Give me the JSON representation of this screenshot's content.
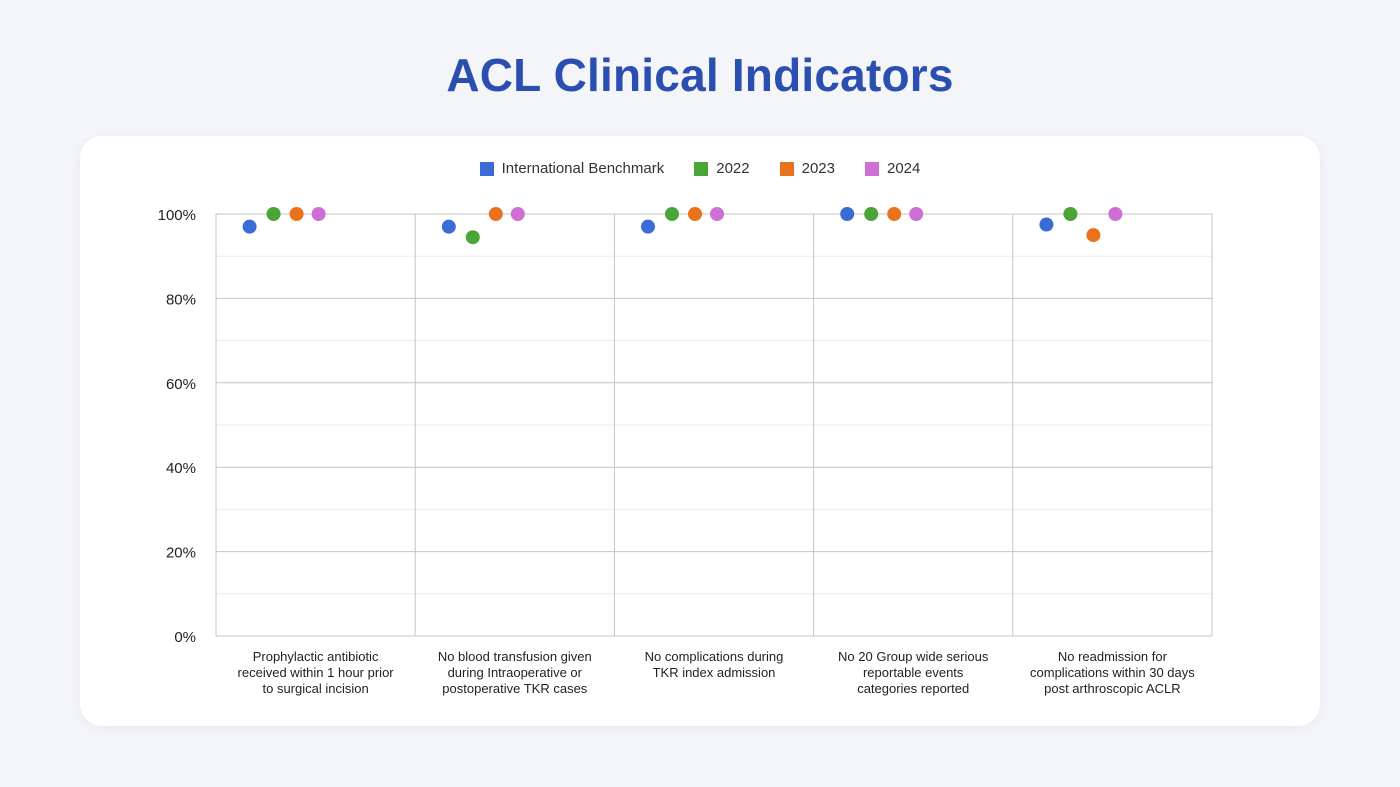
{
  "title": "ACL Clinical Indicators",
  "chart_data": {
    "type": "scatter",
    "title": "ACL Clinical Indicators",
    "xlabel": "",
    "ylabel": "",
    "ylim": [
      0,
      100
    ],
    "yticks": [
      "0%",
      "20%",
      "40%",
      "60%",
      "80%",
      "100%"
    ],
    "categories": [
      "Prophylactic antibiotic received within 1 hour prior to surgical incision",
      "No blood transfusion given during Intraoperative or postoperative TKR cases",
      "No complications during TKR index admission",
      "No 20 Group wide serious reportable events categories reported",
      "No readmission for complications within 30 days post arthroscopic ACLR"
    ],
    "category_lines": [
      [
        "Prophylactic antibiotic",
        "received within 1 hour prior",
        "to surgical incision"
      ],
      [
        "No blood transfusion given",
        "during Intraoperative or",
        "postoperative TKR cases"
      ],
      [
        "No complications during",
        "TKR index admission"
      ],
      [
        "No 20 Group wide serious",
        "reportable events",
        "categories reported"
      ],
      [
        "No readmission for",
        "complications within 30 days",
        "post arthroscopic ACLR"
      ]
    ],
    "legend_position": "top-center",
    "grid": true,
    "series": [
      {
        "name": "International Benchmark",
        "color": "#3b6bd6",
        "values": [
          97,
          97,
          97,
          100,
          97.5
        ]
      },
      {
        "name": "2022",
        "color": "#4aa536",
        "values": [
          100,
          94.5,
          100,
          100,
          100
        ]
      },
      {
        "name": "2023",
        "color": "#e8731c",
        "values": [
          100,
          100,
          100,
          100,
          95
        ]
      },
      {
        "name": "2024",
        "color": "#cd6fd4",
        "values": [
          100,
          100,
          100,
          100,
          100
        ]
      }
    ]
  }
}
